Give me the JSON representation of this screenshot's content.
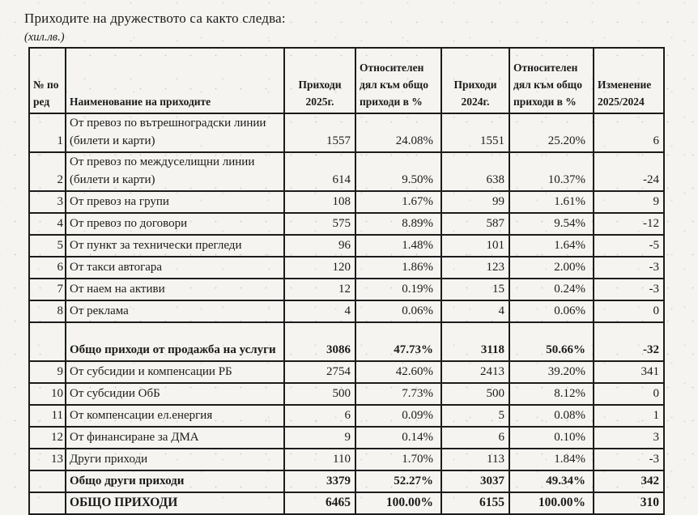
{
  "document": {
    "title": "Приходите на дружеството са както следва:",
    "unit_note": "(хил.лв.)"
  },
  "table": {
    "headers": {
      "num": "№ по ред",
      "name": "Наименование на приходите",
      "rev2025": "Приходи 2025г.",
      "share2025": "Относителен дял към общо приходи в %",
      "rev2024": "Приходи 2024г.",
      "share2024": "Относителен дял към общо приходи в %",
      "change": "Изменение 2025/2024"
    },
    "rows": [
      {
        "num": "1",
        "name": "От превоз по вътрешноградски линии (билети и карти)",
        "rev2025": "1557",
        "share2025": "24.08%",
        "rev2024": "1551",
        "share2024": "25.20%",
        "change": "6",
        "bold": false,
        "tall": true,
        "kind": "item"
      },
      {
        "num": "2",
        "name": "От превоз по междуселищни линии (билети и карти)",
        "rev2025": "614",
        "share2025": "9.50%",
        "rev2024": "638",
        "share2024": "10.37%",
        "change": "-24",
        "bold": false,
        "tall": true,
        "kind": "item"
      },
      {
        "num": "3",
        "name": "От превоз на групи",
        "rev2025": "108",
        "share2025": "1.67%",
        "rev2024": "99",
        "share2024": "1.61%",
        "change": "9",
        "bold": false,
        "tall": false,
        "kind": "item"
      },
      {
        "num": "4",
        "name": "От превоз по договори",
        "rev2025": "575",
        "share2025": "8.89%",
        "rev2024": "587",
        "share2024": "9.54%",
        "change": "-12",
        "bold": false,
        "tall": false,
        "kind": "item"
      },
      {
        "num": "5",
        "name": "От пункт за технически прегледи",
        "rev2025": "96",
        "share2025": "1.48%",
        "rev2024": "101",
        "share2024": "1.64%",
        "change": "-5",
        "bold": false,
        "tall": false,
        "kind": "item"
      },
      {
        "num": "6",
        "name": "От такси автогара",
        "rev2025": "120",
        "share2025": "1.86%",
        "rev2024": "123",
        "share2024": "2.00%",
        "change": "-3",
        "bold": false,
        "tall": false,
        "kind": "item"
      },
      {
        "num": "7",
        "name": "От наем на активи",
        "rev2025": "12",
        "share2025": "0.19%",
        "rev2024": "15",
        "share2024": "0.24%",
        "change": "-3",
        "bold": false,
        "tall": false,
        "kind": "item"
      },
      {
        "num": "8",
        "name": "От реклама",
        "rev2025": "4",
        "share2025": "0.06%",
        "rev2024": "4",
        "share2024": "0.06%",
        "change": "0",
        "bold": false,
        "tall": false,
        "kind": "item"
      },
      {
        "num": "",
        "name": "Общо приходи от продажба на услуги",
        "rev2025": "3086",
        "share2025": "47.73%",
        "rev2024": "3118",
        "share2024": "50.66%",
        "change": "-32",
        "bold": true,
        "tall": true,
        "kind": "subtotal"
      },
      {
        "num": "9",
        "name": "От субсидии и компенсации РБ",
        "rev2025": "2754",
        "share2025": "42.60%",
        "rev2024": "2413",
        "share2024": "39.20%",
        "change": "341",
        "bold": false,
        "tall": false,
        "kind": "item"
      },
      {
        "num": "10",
        "name": "От субсидии ОбБ",
        "rev2025": "500",
        "share2025": "7.73%",
        "rev2024": "500",
        "share2024": "8.12%",
        "change": "0",
        "bold": false,
        "tall": false,
        "kind": "item"
      },
      {
        "num": "11",
        "name": "От компенсации ел.енергия",
        "rev2025": "6",
        "share2025": "0.09%",
        "rev2024": "5",
        "share2024": "0.08%",
        "change": "1",
        "bold": false,
        "tall": false,
        "kind": "item"
      },
      {
        "num": "12",
        "name": "От финансиране за ДМА",
        "rev2025": "9",
        "share2025": "0.14%",
        "rev2024": "6",
        "share2024": "0.10%",
        "change": "3",
        "bold": false,
        "tall": false,
        "kind": "item"
      },
      {
        "num": "13",
        "name": "Други приходи",
        "rev2025": "110",
        "share2025": "1.70%",
        "rev2024": "113",
        "share2024": "1.84%",
        "change": "-3",
        "bold": false,
        "tall": false,
        "kind": "item"
      },
      {
        "num": "",
        "name": "Общо други приходи",
        "rev2025": "3379",
        "share2025": "52.27%",
        "rev2024": "3037",
        "share2024": "49.34%",
        "change": "342",
        "bold": true,
        "tall": false,
        "kind": "subtotal"
      },
      {
        "num": "",
        "name": "ОБЩО ПРИХОДИ",
        "rev2025": "6465",
        "share2025": "100.00%",
        "rev2024": "6155",
        "share2024": "100.00%",
        "change": "310",
        "bold": true,
        "tall": false,
        "kind": "total"
      }
    ]
  }
}
